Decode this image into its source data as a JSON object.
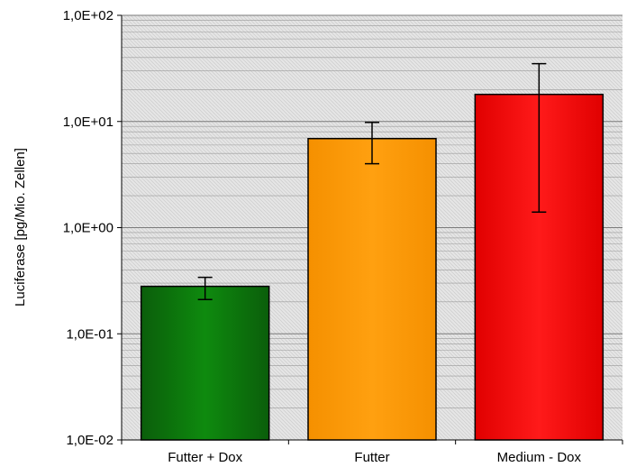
{
  "chart_data": {
    "type": "bar",
    "y_scale": "log",
    "ylabel": "Luciferase [pg/Mio. Zellen]",
    "xlabel": "",
    "title": "",
    "ylim": [
      0.01,
      100
    ],
    "y_ticks": [
      0.01,
      0.1,
      1,
      10,
      100
    ],
    "y_tick_labels": [
      "1,0E-02",
      "1,0E-01",
      "1,0E+00",
      "1,0E+01",
      "1,0E+02"
    ],
    "grid": true,
    "legend": "none",
    "categories": [
      "Futter + Dox",
      "Futter",
      "Medium - Dox"
    ],
    "values": [
      0.28,
      6.9,
      18
    ],
    "error_low": [
      0.21,
      4.0,
      1.4
    ],
    "error_high": [
      0.34,
      9.8,
      35
    ],
    "colors": [
      "#0a7a0a",
      "#ff9900",
      "#ff0000"
    ]
  }
}
